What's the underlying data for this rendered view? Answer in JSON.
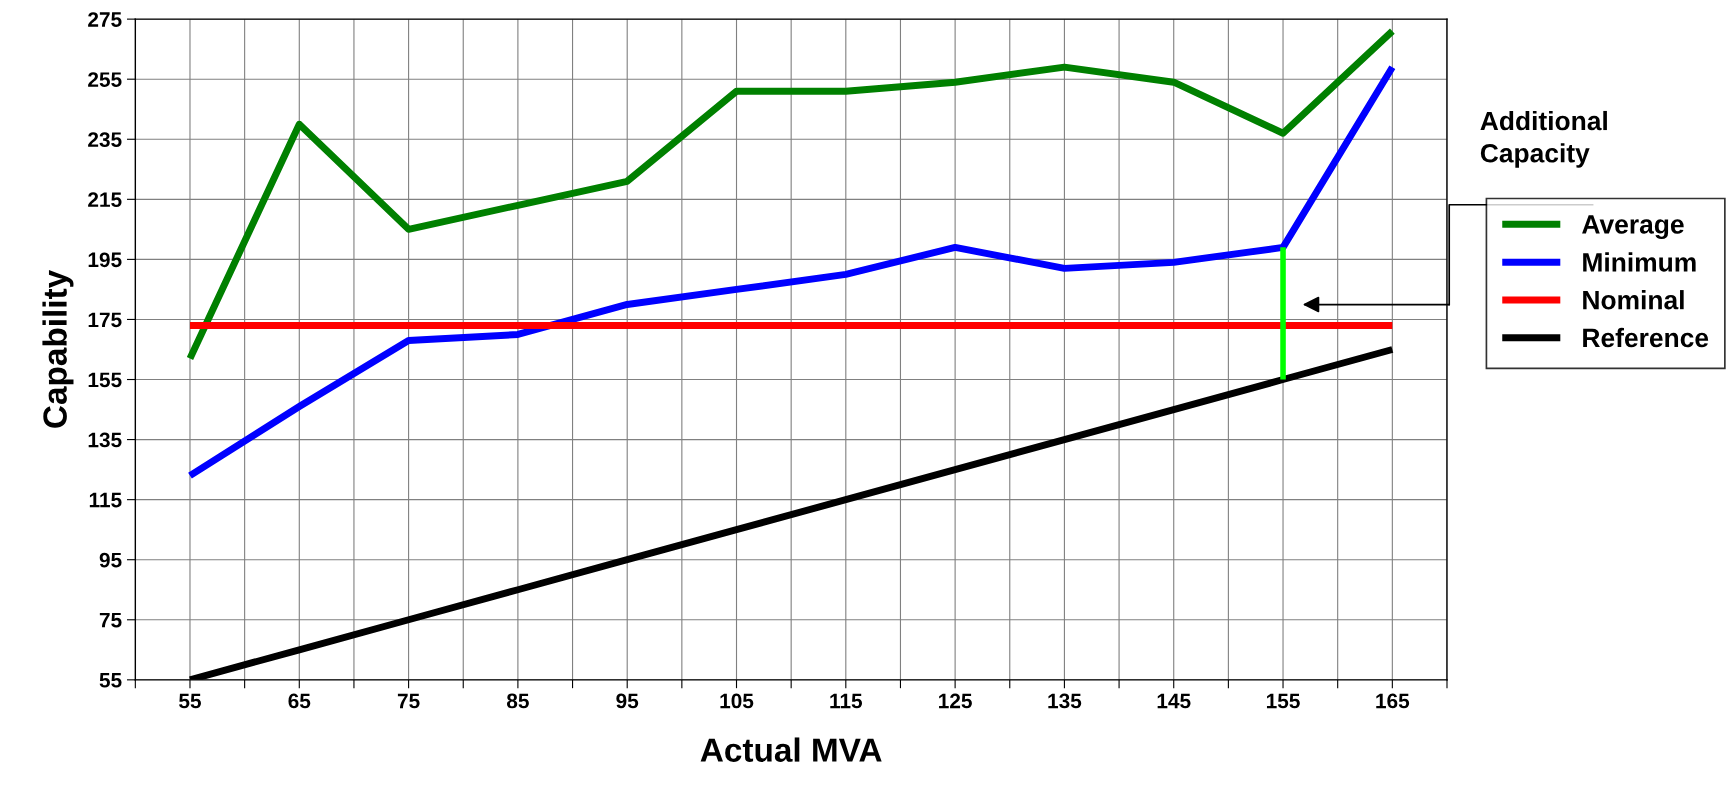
{
  "chart_data": {
    "type": "line",
    "xlabel": "Actual MVA",
    "ylabel": "Capability",
    "x": [
      55,
      65,
      75,
      85,
      95,
      105,
      115,
      125,
      135,
      145,
      155,
      165
    ],
    "xlim": [
      50,
      170
    ],
    "xticks": [
      {
        "value": 50,
        "label": null
      },
      55,
      {
        "value": 60,
        "label": null
      },
      65,
      {
        "value": 70,
        "label": null
      },
      75,
      {
        "value": 80,
        "label": null
      },
      85,
      {
        "value": 90,
        "label": null
      },
      95,
      {
        "value": 100,
        "label": null
      },
      105,
      {
        "value": 110,
        "label": null
      },
      115,
      {
        "value": 120,
        "label": null
      },
      125,
      {
        "value": 130,
        "label": null
      },
      135,
      {
        "value": 140,
        "label": null
      },
      145,
      {
        "value": 150,
        "label": null
      },
      155,
      {
        "value": 160,
        "label": null
      },
      165,
      {
        "value": 170,
        "label": null
      }
    ],
    "ylim": [
      55,
      275
    ],
    "yticks": [
      55,
      75,
      95,
      115,
      135,
      155,
      175,
      195,
      215,
      235,
      255,
      275
    ],
    "grid": true,
    "legend": "right",
    "marker": "none",
    "line_style": "solid",
    "series": [
      {
        "name": "Average",
        "color": "#008000",
        "values": [
          162,
          240,
          205,
          213,
          221,
          251,
          251,
          254,
          259,
          254,
          237,
          271
        ]
      },
      {
        "name": "Minimum",
        "color": "#0000ff",
        "values": [
          123,
          146,
          168,
          170,
          180,
          185,
          190,
          199,
          192,
          194,
          199,
          259
        ]
      },
      {
        "name": "Nominal",
        "color": "#ff0000",
        "values": [
          173,
          173,
          173,
          173,
          173,
          173,
          173,
          173,
          173,
          173,
          173,
          173
        ]
      },
      {
        "name": "Reference",
        "color": "#000000",
        "values": [
          55,
          65,
          75,
          85,
          95,
          105,
          115,
          125,
          135,
          145,
          155,
          165
        ]
      },
      {
        "color": "#00ff00",
        "x": [
          155,
          155
        ],
        "values": [
          155,
          199
        ]
      }
    ],
    "annotations": [
      "Additional\nCapacity"
    ]
  }
}
